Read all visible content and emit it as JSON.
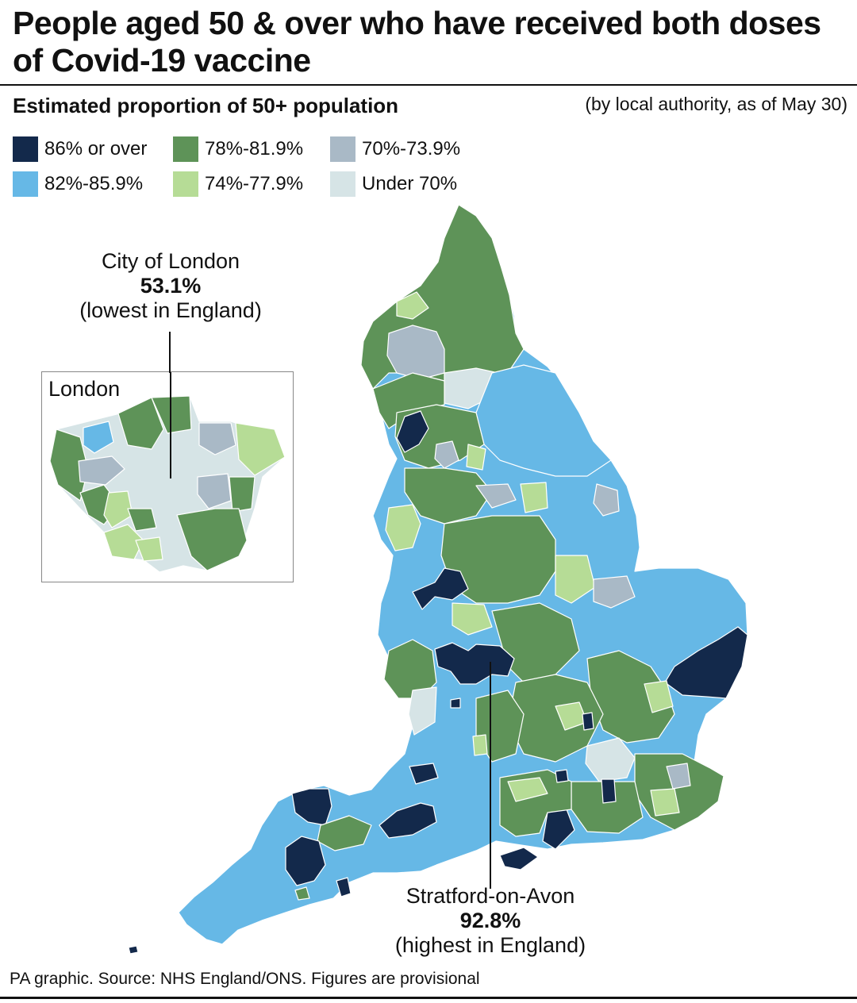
{
  "title": "People aged 50 & over who have received both doses of Covid-19 vaccine",
  "subtitle": "Estimated proportion of 50+ population",
  "note": "(by local authority, as of May 30)",
  "legend": [
    {
      "label": "86% or over",
      "color": "#13294b"
    },
    {
      "label": "78%-81.9%",
      "color": "#5e9358"
    },
    {
      "label": "70%-73.9%",
      "color": "#a9b9c6"
    },
    {
      "label": "82%-85.9%",
      "color": "#66b8e6"
    },
    {
      "label": "74%-77.9%",
      "color": "#b6dc96"
    },
    {
      "label": "Under 70%",
      "color": "#d6e4e6"
    }
  ],
  "inset_title": "London",
  "annotations": {
    "lowest": {
      "place": "City of London",
      "value": "53.1%",
      "note": "(lowest in England)"
    },
    "highest": {
      "place": "Stratford-on-Avon",
      "value": "92.8%",
      "note": "(highest in England)"
    }
  },
  "source": "PA graphic. Source: NHS England/ONS. Figures are provisional"
}
